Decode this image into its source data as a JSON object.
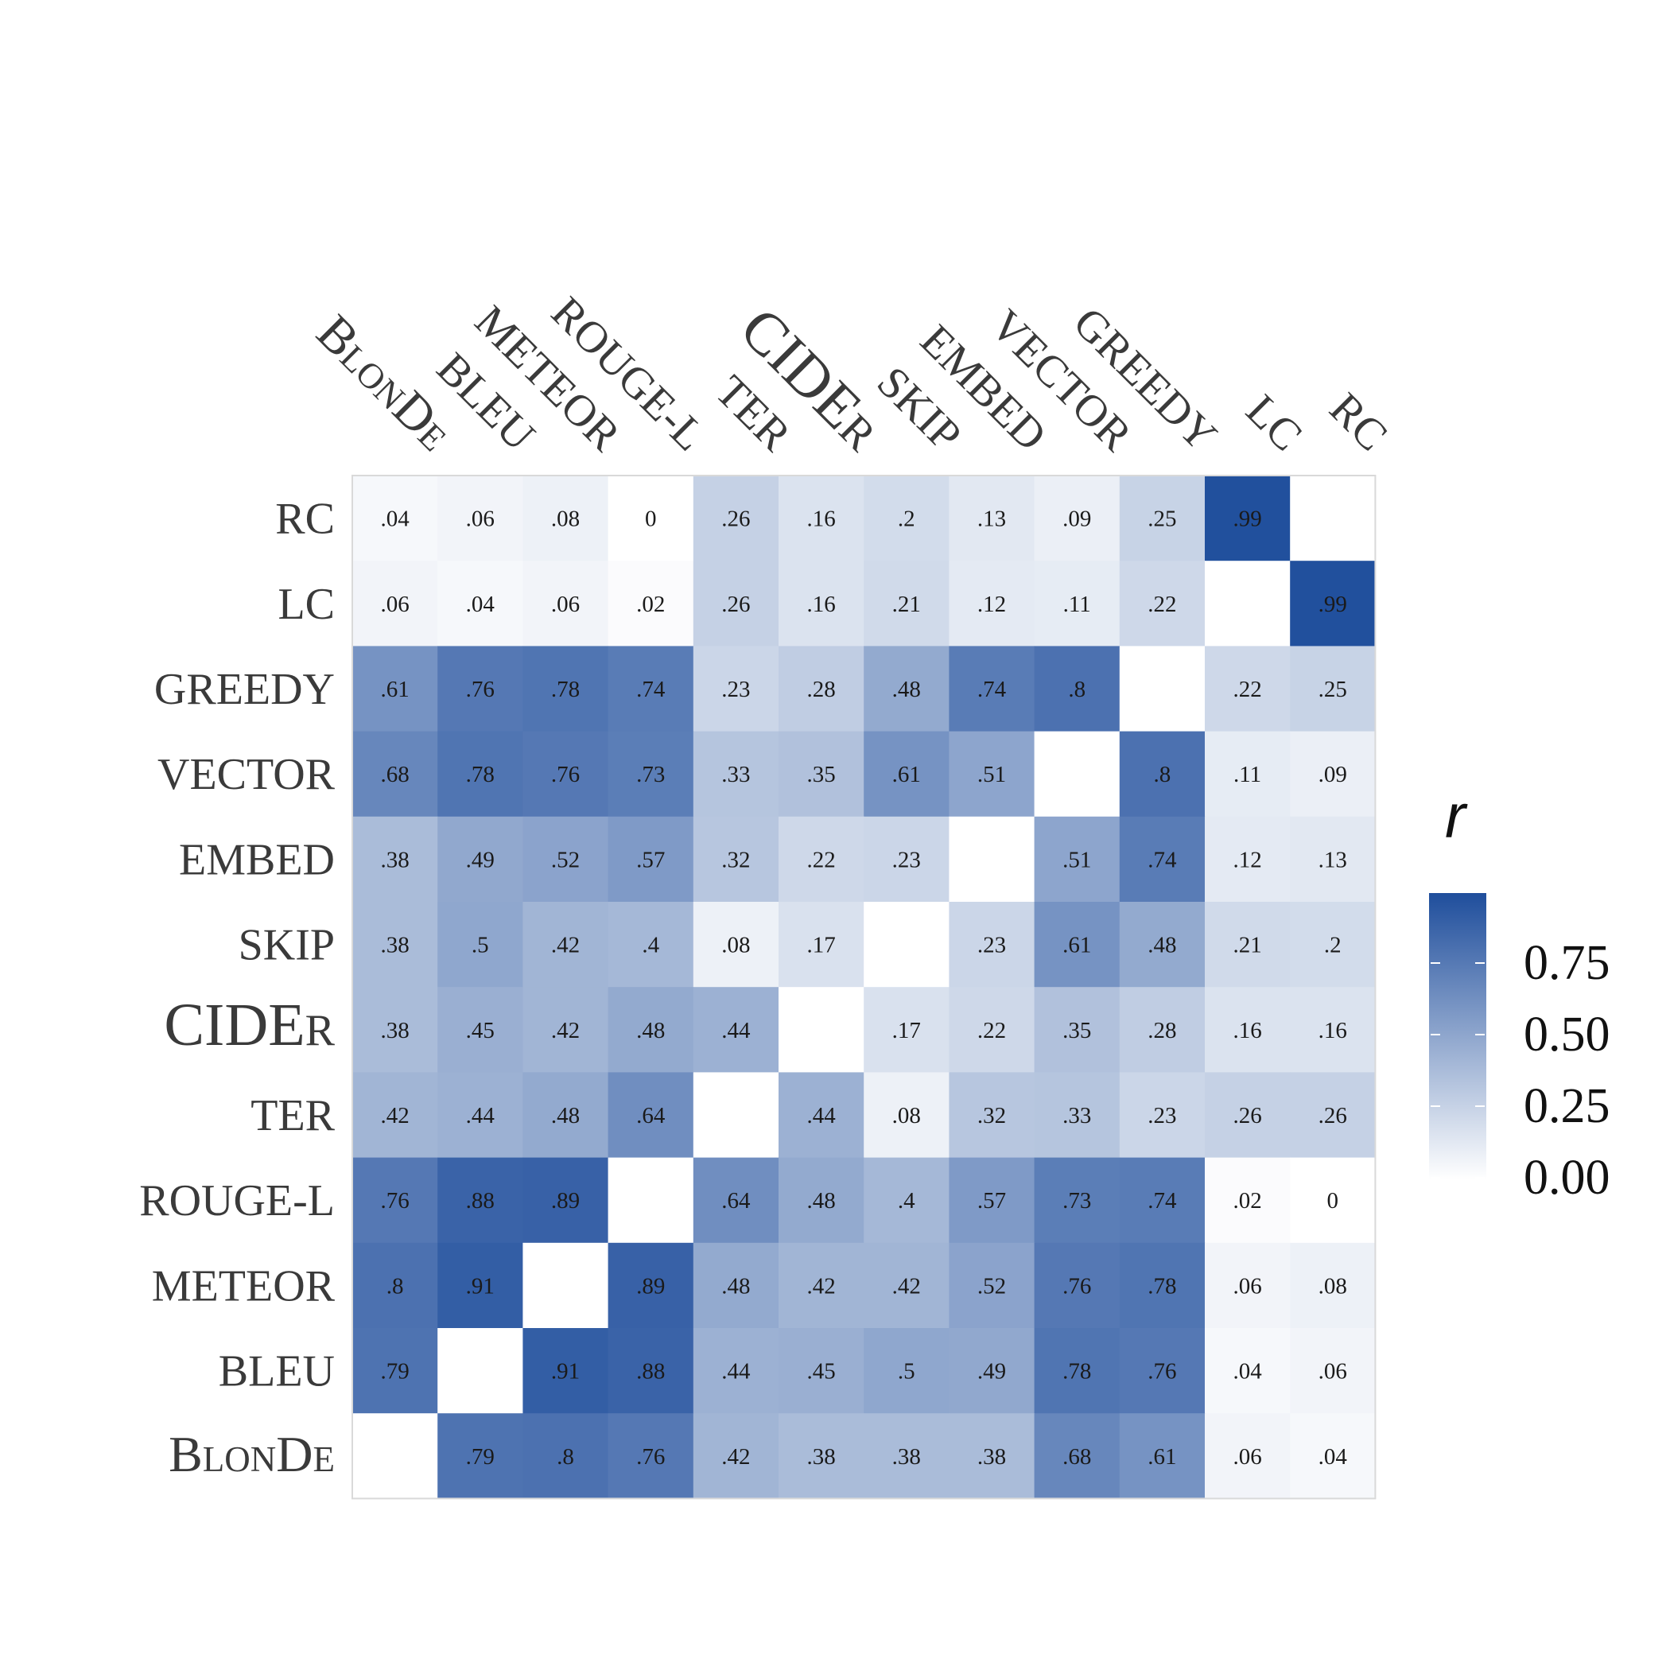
{
  "chart_data": {
    "type": "heatmap",
    "metrics": [
      "BlonDe",
      "BLEU",
      "METEOR",
      "ROUGE-L",
      "TER",
      "CIDEr",
      "SKIP",
      "EMBED",
      "VECTOR",
      "GREEDY",
      "LC",
      "RC"
    ],
    "columns": [
      "BlonDe",
      "BLEU",
      "METEOR",
      "ROUGE-L",
      "TER",
      "CIDEr",
      "SKIP",
      "EMBED",
      "VECTOR",
      "GREEDY",
      "LC",
      "RC"
    ],
    "rows": [
      "RC",
      "LC",
      "GREEDY",
      "VECTOR",
      "EMBED",
      "SKIP",
      "CIDEr",
      "TER",
      "ROUGE-L",
      "METEOR",
      "BLEU",
      "BlonDe"
    ],
    "cells": [
      [
        ".04",
        ".06",
        ".08",
        "0",
        ".26",
        ".16",
        ".2",
        ".13",
        ".09",
        ".25",
        ".99",
        null
      ],
      [
        ".06",
        ".04",
        ".06",
        ".02",
        ".26",
        ".16",
        ".21",
        ".12",
        ".11",
        ".22",
        null,
        ".99"
      ],
      [
        ".61",
        ".76",
        ".78",
        ".74",
        ".23",
        ".28",
        ".48",
        ".74",
        ".8",
        null,
        ".22",
        ".25"
      ],
      [
        ".68",
        ".78",
        ".76",
        ".73",
        ".33",
        ".35",
        ".61",
        ".51",
        null,
        ".8",
        ".11",
        ".09"
      ],
      [
        ".38",
        ".49",
        ".52",
        ".57",
        ".32",
        ".22",
        ".23",
        null,
        ".51",
        ".74",
        ".12",
        ".13"
      ],
      [
        ".38",
        ".5",
        ".42",
        ".4",
        ".08",
        ".17",
        null,
        ".23",
        ".61",
        ".48",
        ".21",
        ".2"
      ],
      [
        ".38",
        ".45",
        ".42",
        ".48",
        ".44",
        null,
        ".17",
        ".22",
        ".35",
        ".28",
        ".16",
        ".16"
      ],
      [
        ".42",
        ".44",
        ".48",
        ".64",
        null,
        ".44",
        ".08",
        ".32",
        ".33",
        ".23",
        ".26",
        ".26"
      ],
      [
        ".76",
        ".88",
        ".89",
        null,
        ".64",
        ".48",
        ".4",
        ".57",
        ".73",
        ".74",
        ".02",
        "0"
      ],
      [
        ".8",
        ".91",
        null,
        ".89",
        ".48",
        ".42",
        ".42",
        ".52",
        ".76",
        ".78",
        ".06",
        ".08"
      ],
      [
        ".79",
        null,
        ".91",
        ".88",
        ".44",
        ".45",
        ".5",
        ".49",
        ".78",
        ".76",
        ".04",
        ".06"
      ],
      [
        null,
        ".79",
        ".8",
        ".76",
        ".42",
        ".38",
        ".38",
        ".38",
        ".68",
        ".61",
        ".06",
        ".04"
      ]
    ],
    "color_scale": {
      "low": "#ffffff",
      "high": "#1f4e9c",
      "range": [
        0,
        1
      ]
    },
    "legend": {
      "title": "r",
      "ticks": [
        "0.00",
        "0.25",
        "0.50",
        "0.75"
      ],
      "tick_values": [
        0,
        0.25,
        0.5,
        0.75
      ],
      "placement": "right"
    }
  }
}
